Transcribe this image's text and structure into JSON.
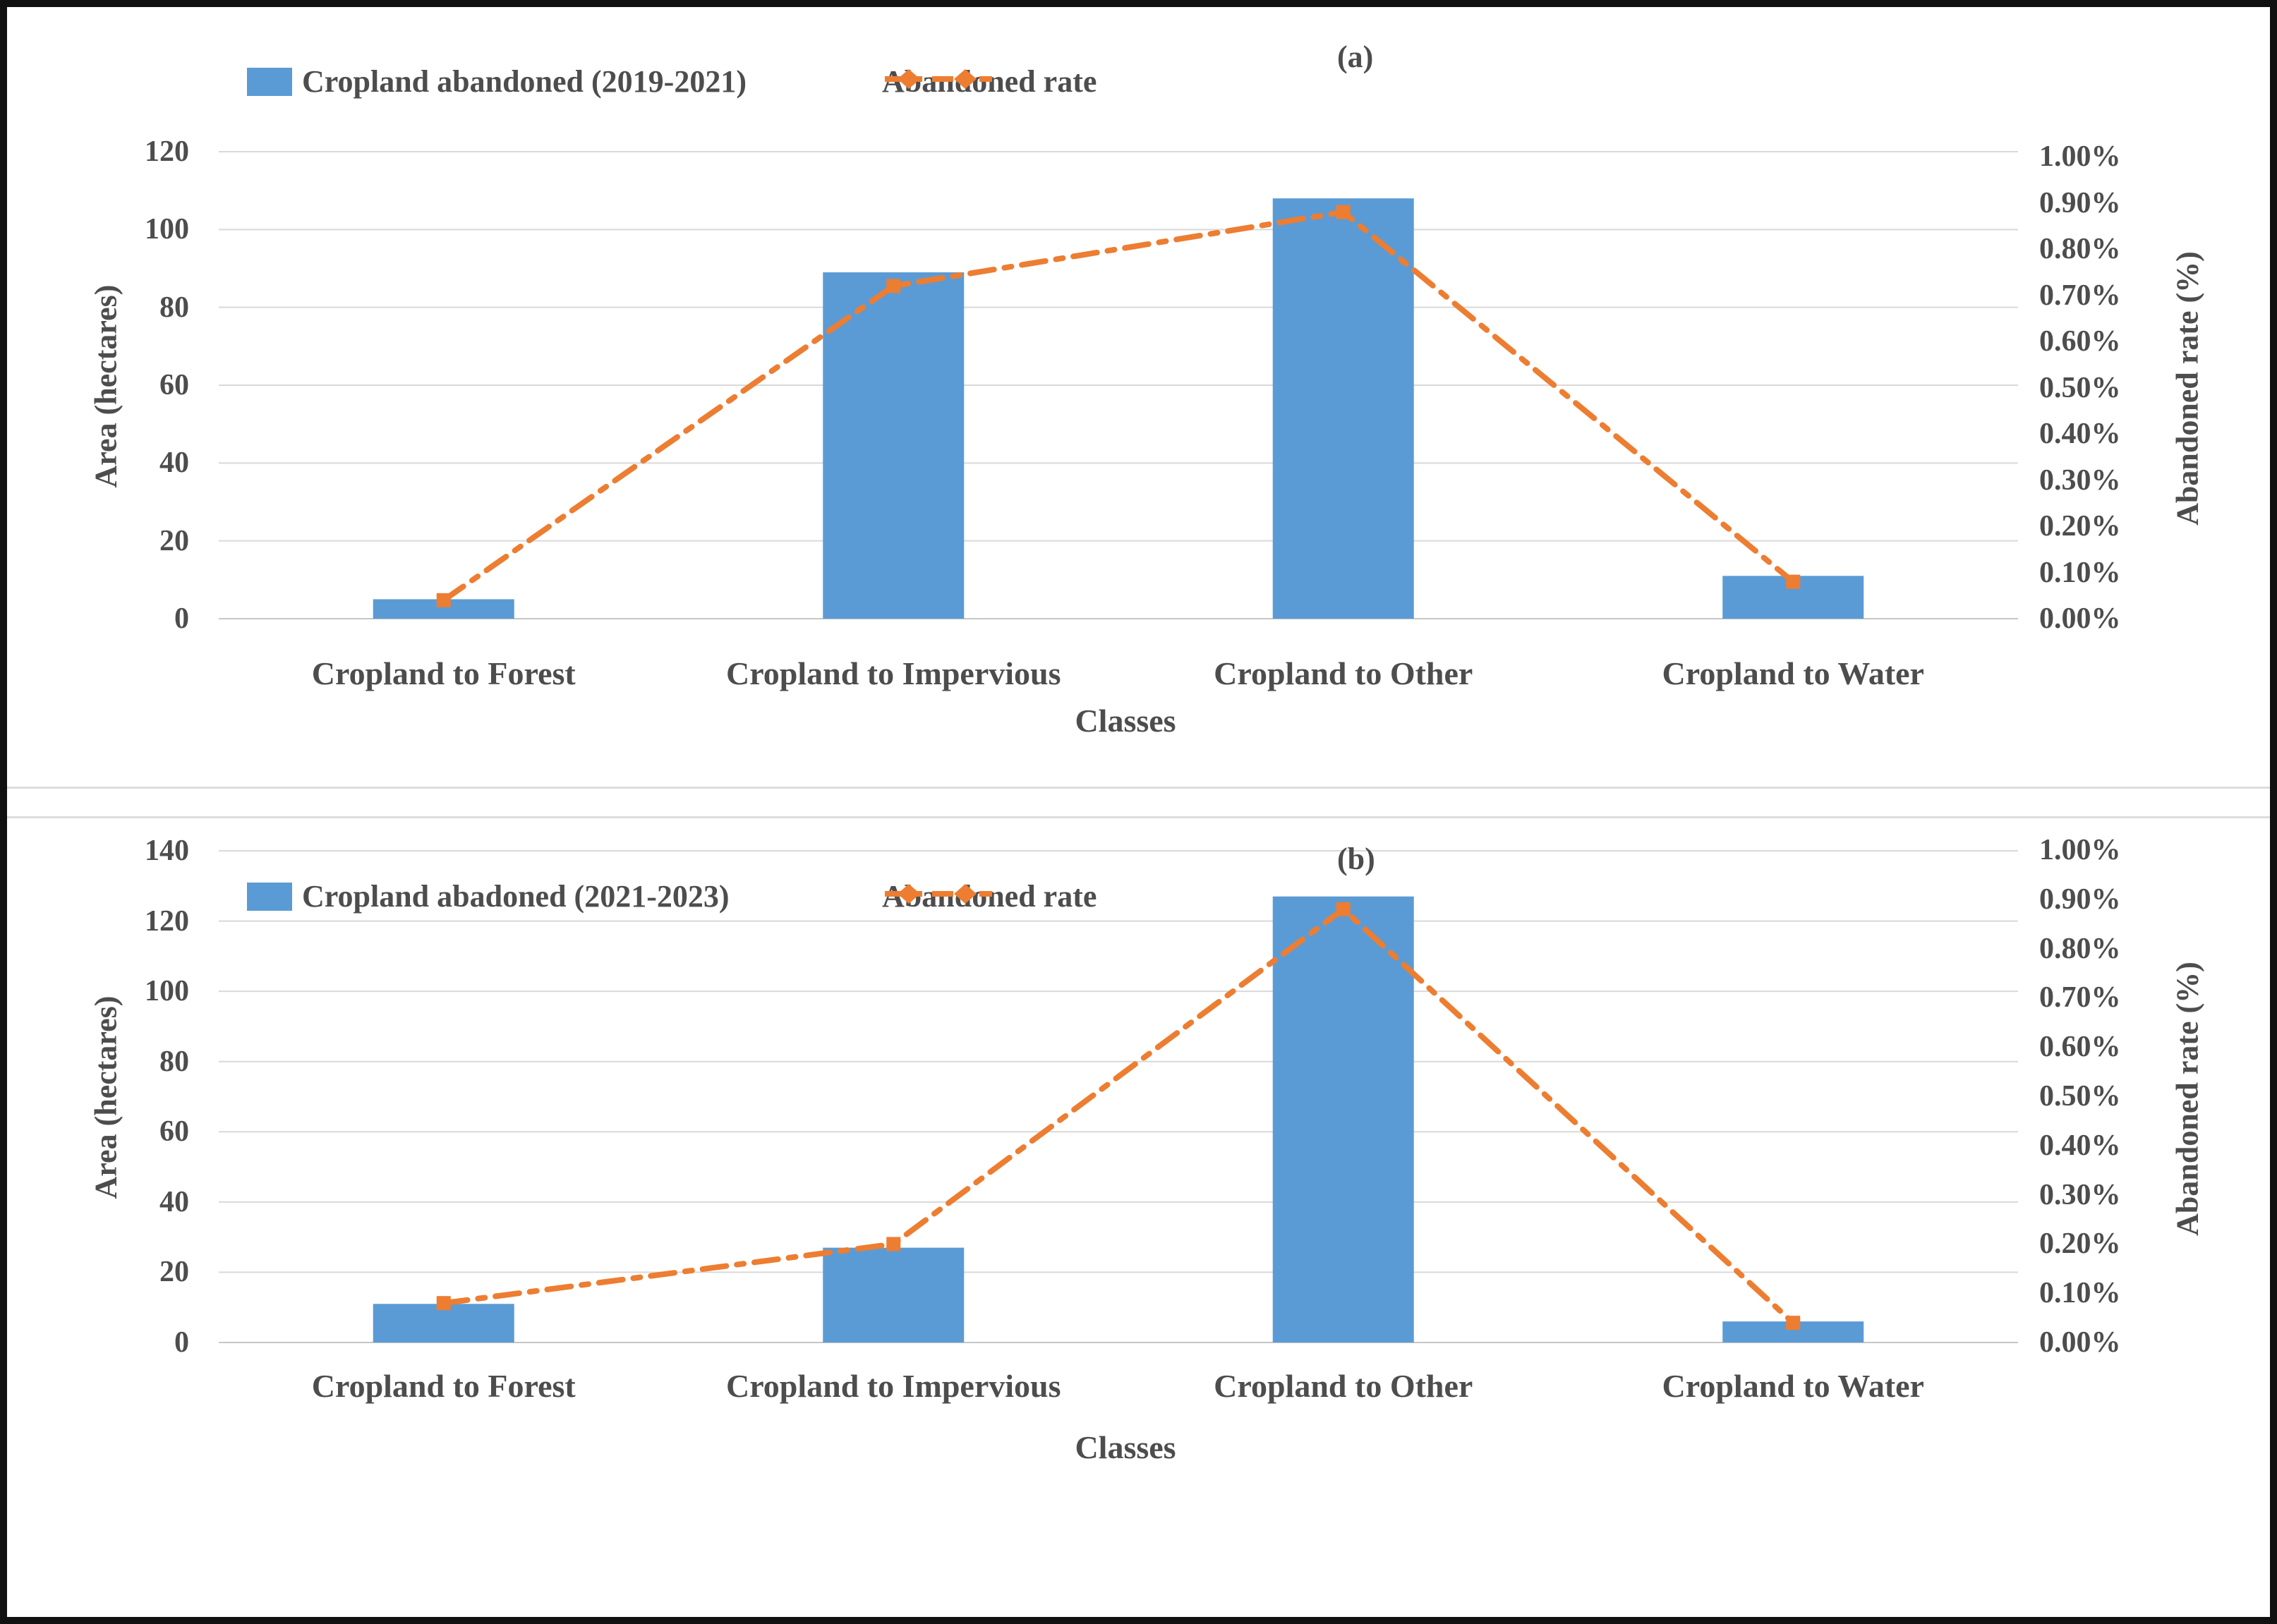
{
  "figure": {
    "background": "#ffffff",
    "border_color": "#111111",
    "bar_color": "#5b9bd5",
    "line_color": "#ed7d31",
    "gridline_color": "#d9d9d9",
    "text_color": "#4d4d4d"
  },
  "chart_data": [
    {
      "type": "combo-bar-line",
      "panel_label": "(a)",
      "legend_bar": "Cropland abandoned (2019-2021)",
      "legend_line": "Abandoned rate",
      "xlabel": "Classes",
      "ylabel_left": "Area (hectares)",
      "ylabel_right": "Abandoned rate  (%)",
      "categories": [
        "Cropland to Forest",
        "Cropland to Impervious",
        "Cropland to Other",
        "Cropland to Water"
      ],
      "series": [
        {
          "name": "Cropland abandoned (2019-2021)",
          "type": "bar",
          "axis": "left",
          "values": [
            5,
            89,
            108,
            11
          ]
        },
        {
          "name": "Abandoned rate",
          "type": "line",
          "axis": "right",
          "values_percent": [
            0.04,
            0.72,
            0.88,
            0.08
          ]
        }
      ],
      "y_left": {
        "min": 0,
        "max": 120,
        "step": 20,
        "ticks": [
          "0",
          "20",
          "40",
          "60",
          "80",
          "100",
          "120"
        ]
      },
      "y_right": {
        "min": 0,
        "max": 1.0,
        "step": 0.1,
        "ticks": [
          "0.00%",
          "0.10%",
          "0.20%",
          "0.30%",
          "0.40%",
          "0.50%",
          "0.60%",
          "0.70%",
          "0.80%",
          "0.90%",
          "1.00%"
        ]
      },
      "grid": true,
      "legend_position": "top"
    },
    {
      "type": "combo-bar-line",
      "panel_label": "(b)",
      "legend_bar": "Cropland abadoned (2021-2023)",
      "legend_line": "Abandoned rate",
      "xlabel": "Classes",
      "ylabel_left": "Area (hectares)",
      "ylabel_right": "Abandoned rate  (%)",
      "categories": [
        "Cropland to Forest",
        "Cropland to Impervious",
        "Cropland to Other",
        "Cropland to Water"
      ],
      "series": [
        {
          "name": "Cropland abadoned (2021-2023)",
          "type": "bar",
          "axis": "left",
          "values": [
            11,
            27,
            127,
            6
          ]
        },
        {
          "name": "Abandoned rate",
          "type": "line",
          "axis": "right",
          "values_percent": [
            0.08,
            0.2,
            0.88,
            0.04
          ]
        }
      ],
      "y_left": {
        "min": 0,
        "max": 140,
        "step": 20,
        "ticks": [
          "0",
          "20",
          "40",
          "60",
          "80",
          "100",
          "120",
          "140"
        ]
      },
      "y_right": {
        "min": 0,
        "max": 1.0,
        "step": 0.1,
        "ticks": [
          "0.00%",
          "0.10%",
          "0.20%",
          "0.30%",
          "0.40%",
          "0.50%",
          "0.60%",
          "0.70%",
          "0.80%",
          "0.90%",
          "1.00%"
        ]
      },
      "grid": true,
      "legend_position": "top"
    }
  ]
}
